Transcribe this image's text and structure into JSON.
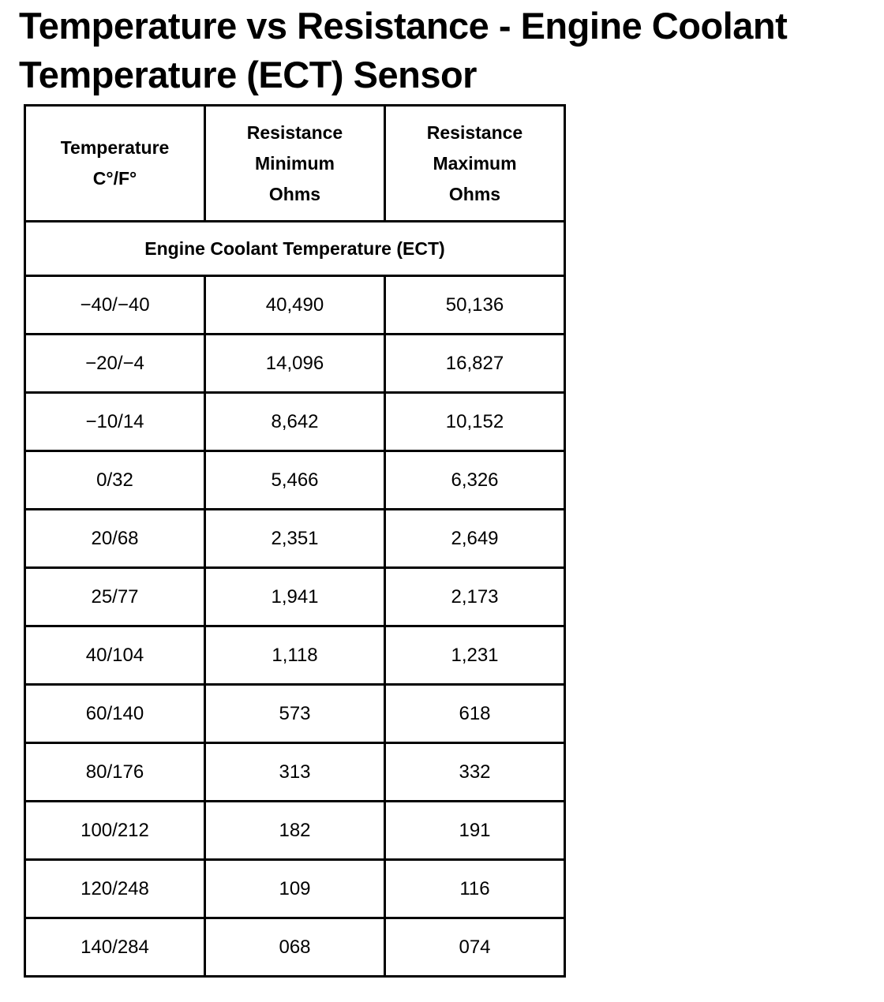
{
  "title": "Temperature vs Resistance - Engine Coolant Temperature (ECT) Sensor",
  "table": {
    "headers": [
      {
        "lines": [
          "Temperature",
          "C°/F°"
        ]
      },
      {
        "lines": [
          "Resistance",
          "Minimum",
          "Ohms"
        ]
      },
      {
        "lines": [
          "Resistance",
          "Maximum",
          "Ohms"
        ]
      }
    ],
    "section_label": "Engine Coolant Temperature (ECT)",
    "rows": [
      [
        "−40/−40",
        "40,490",
        "50,136"
      ],
      [
        "−20/−4",
        "14,096",
        "16,827"
      ],
      [
        "−10/14",
        "8,642",
        "10,152"
      ],
      [
        "0/32",
        "5,466",
        "6,326"
      ],
      [
        "20/68",
        "2,351",
        "2,649"
      ],
      [
        "25/77",
        "1,941",
        "2,173"
      ],
      [
        "40/104",
        "1,118",
        "1,231"
      ],
      [
        "60/140",
        "573",
        "618"
      ],
      [
        "80/176",
        "313",
        "332"
      ],
      [
        "100/212",
        "182",
        "191"
      ],
      [
        "120/248",
        "109",
        "116"
      ],
      [
        "140/284",
        "068",
        "074"
      ]
    ]
  }
}
